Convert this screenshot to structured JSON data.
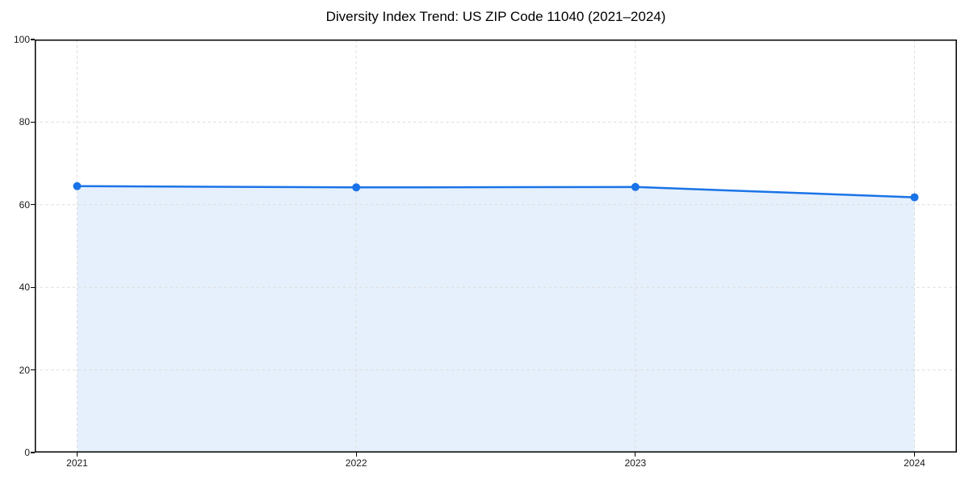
{
  "chart_data": {
    "type": "line",
    "title": "Diversity Index Trend: US ZIP Code 11040 (2021–2024)",
    "x": [
      2021,
      2022,
      2023,
      2024
    ],
    "xticklabels": [
      "2021",
      "2022",
      "2023",
      "2024"
    ],
    "series": [
      {
        "name": "Diversity Index",
        "values": [
          64.5,
          64.2,
          64.3,
          61.8
        ]
      }
    ],
    "xlabel": "",
    "ylabel": "",
    "ylim": [
      0,
      100
    ],
    "yticks": [
      0,
      20,
      40,
      60,
      80,
      100
    ],
    "grid": true,
    "legend": "none",
    "line_color": "#1a73e8",
    "marker_color": "#1a73e8",
    "fill_color": "#1a73e8",
    "fill_opacity": 0.11,
    "grid_color": "#dcdcdc",
    "spine_color": "#000000"
  }
}
